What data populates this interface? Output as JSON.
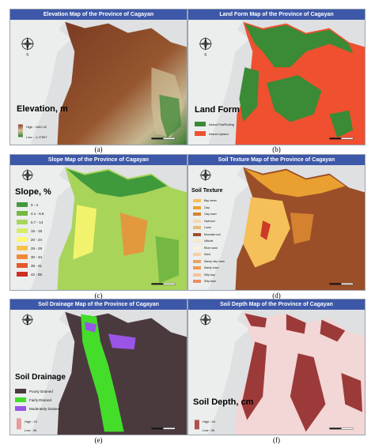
{
  "panels": [
    {
      "id": "a",
      "title": "Elevation Map of the Province of Cagayan",
      "caption": "(a)"
    },
    {
      "id": "b",
      "title": "Land Form Map of the Province of Cagayan",
      "caption": "(b)"
    },
    {
      "id": "c",
      "title": "Slope Map of the Province of Cagayan",
      "caption": "(c)"
    },
    {
      "id": "d",
      "title": "Soil Texture Map of the Province of Cagayan",
      "caption": "(d)"
    },
    {
      "id": "e",
      "title": "Soil Drainage Map of the Province of Cagayan",
      "caption": "(e)"
    },
    {
      "id": "f",
      "title": "Soil Depth Map of the Province of Cagayan",
      "caption": "(f)"
    }
  ],
  "elevation": {
    "legend_title": "Elevation, m",
    "high": "High : 1802.32",
    "low": "Low : -1.27597"
  },
  "landform": {
    "legend_title": "Land Form",
    "items": [
      {
        "label": "Inland Flat/Rolling",
        "color": "#3a8a36"
      },
      {
        "label": "Inland Upland",
        "color": "#ee5030"
      }
    ]
  },
  "slope": {
    "legend_title": "Slope, %",
    "items": [
      {
        "label": "0 - 4",
        "color": "#3f9a3c"
      },
      {
        "label": "4.1 - 6.6",
        "color": "#74b843"
      },
      {
        "label": "6.7 - 14",
        "color": "#a8d45a"
      },
      {
        "label": "15 - 18",
        "color": "#d7ec6a"
      },
      {
        "label": "20 - 24",
        "color": "#fff870"
      },
      {
        "label": "25 - 29",
        "color": "#f8c248"
      },
      {
        "label": "30 - 34",
        "color": "#f08a36"
      },
      {
        "label": "35 - 41",
        "color": "#e4582a"
      },
      {
        "label": "42 - 85",
        "color": "#cc2e22"
      }
    ]
  },
  "texture": {
    "legend_title": "Soil Texture",
    "items": [
      {
        "label": "Bay mean",
        "color": "#f5c05a"
      },
      {
        "label": "Clay",
        "color": "#e9a030"
      },
      {
        "label": "Clay loam",
        "color": "#d48230"
      },
      {
        "label": "Hydrosol",
        "color": "#f6d9b0"
      },
      {
        "label": "Loam",
        "color": "#e7b97a"
      },
      {
        "label": "Mountain soil",
        "color": "#9b4f28"
      },
      {
        "label": "Ultisols",
        "color": "#f4e6c8"
      },
      {
        "label": "River sand",
        "color": "#f9f1dd"
      },
      {
        "label": "Sand",
        "color": "#f3d2a4"
      },
      {
        "label": "Sandy clay loam",
        "color": "#e7a267"
      },
      {
        "label": "Sandy loam",
        "color": "#ef9a54"
      },
      {
        "label": "Silty clay",
        "color": "#f7c29b"
      },
      {
        "label": "Silty loam",
        "color": "#ec8c62"
      }
    ]
  },
  "drainage": {
    "legend_title": "Soil Drainage",
    "items": [
      {
        "label": "Poorly Drained",
        "color": "#4a3a3e"
      },
      {
        "label": "Fairly Drained",
        "color": "#44dd2a"
      },
      {
        "label": "Moderately Drained",
        "color": "#9a55e6"
      }
    ],
    "high": "High : 24",
    "low": "Low : 46"
  },
  "depth": {
    "legend_title": "Soil Depth, cm",
    "high": "High : 54",
    "low": "Low : 36"
  }
}
